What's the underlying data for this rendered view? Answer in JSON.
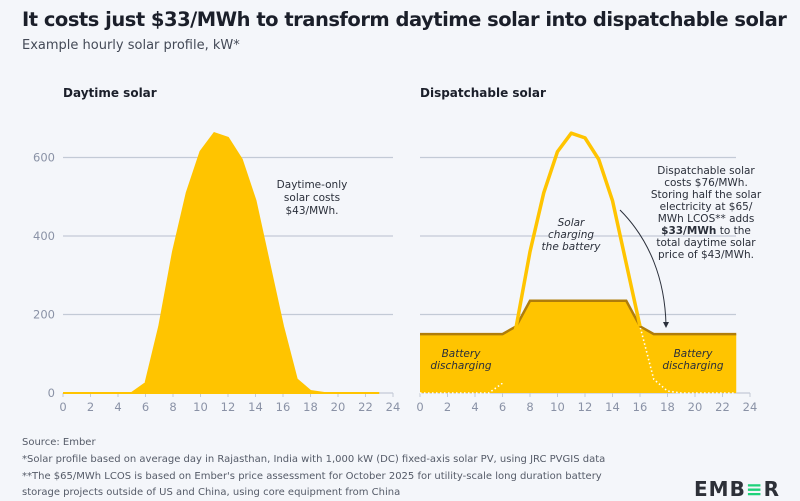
{
  "title": "It costs just $33/MWh to transform daytime solar into dispatchable solar",
  "subtitle": "Example hourly solar profile, kW*",
  "chart_data": [
    {
      "type": "area",
      "title": "Daytime solar",
      "xlabel": "",
      "ylabel": "",
      "xlim": [
        0,
        24
      ],
      "ylim": [
        0,
        700
      ],
      "xticks": [
        "0",
        "2",
        "4",
        "6",
        "8",
        "10",
        "12",
        "14",
        "16",
        "18",
        "20",
        "22",
        "24"
      ],
      "yticks": [
        "0",
        "200",
        "400",
        "600"
      ],
      "grid": true,
      "x": [
        0,
        1,
        2,
        3,
        4,
        5,
        6,
        7,
        8,
        9,
        10,
        11,
        12,
        13,
        14,
        15,
        16,
        17,
        18,
        19,
        20,
        21,
        22,
        23
      ],
      "series": [
        {
          "name": "Solar",
          "color": "#ffc400",
          "values": [
            0,
            0,
            0,
            0,
            0,
            0,
            25,
            170,
            360,
            510,
            615,
            662,
            650,
            595,
            490,
            330,
            170,
            35,
            5,
            0,
            0,
            0,
            0,
            0
          ]
        }
      ],
      "annotations": [
        {
          "text": [
            "Daytime-only",
            "solar costs",
            "$43/MWh."
          ]
        }
      ]
    },
    {
      "type": "area",
      "title": "Dispatchable solar",
      "xlabel": "",
      "ylabel": "",
      "xlim": [
        0,
        24
      ],
      "ylim": [
        0,
        700
      ],
      "xticks": [
        "0",
        "2",
        "4",
        "6",
        "8",
        "10",
        "12",
        "14",
        "16",
        "18",
        "20",
        "22",
        "24"
      ],
      "yticks": [
        "0",
        "200",
        "400",
        "600"
      ],
      "grid": true,
      "x": [
        0,
        1,
        2,
        3,
        4,
        5,
        6,
        7,
        8,
        9,
        10,
        11,
        12,
        13,
        14,
        15,
        16,
        17,
        18,
        19,
        20,
        21,
        22,
        23
      ],
      "series": [
        {
          "name": "Dispatchable output",
          "color": "#b07d0a",
          "values": [
            150,
            150,
            150,
            150,
            150,
            150,
            150,
            170,
            235,
            235,
            235,
            235,
            235,
            235,
            235,
            235,
            170,
            150,
            150,
            150,
            150,
            150,
            150,
            150
          ]
        },
        {
          "name": "Solar generation",
          "color": "#ffc400",
          "values": [
            0,
            0,
            0,
            0,
            0,
            0,
            25,
            170,
            360,
            510,
            615,
            662,
            650,
            595,
            490,
            330,
            170,
            35,
            5,
            0,
            0,
            0,
            0,
            0
          ]
        }
      ],
      "annotations": [
        {
          "text": [
            "Solar",
            "charging",
            "the battery"
          ]
        },
        {
          "text": [
            "Battery",
            "discharging"
          ]
        },
        {
          "text": [
            "Battery",
            "discharging"
          ]
        },
        {
          "text": [
            "Dispatchable solar",
            "costs $76/MWh.",
            "Storing half the solar",
            "electricity at $65/",
            "MWh LCOS** adds",
            "$33/MWh to the",
            "total daytime solar",
            "price of $43/MWh."
          ]
        }
      ]
    }
  ],
  "footer": {
    "source": "Source: Ember",
    "note1": "*Solar profile based on average day in Rajasthan, India with 1,000 kW (DC) fixed-axis solar PV, using JRC PVGIS data",
    "note2": "**The $65/MWh LCOS is based on Ember's price assessment for October 2025 for utility-scale long duration battery",
    "note3": "storage projects outside of US and China, using core equipment from China"
  },
  "logo": {
    "pre": "EMB",
    "accent": "≡",
    "post": "R"
  }
}
